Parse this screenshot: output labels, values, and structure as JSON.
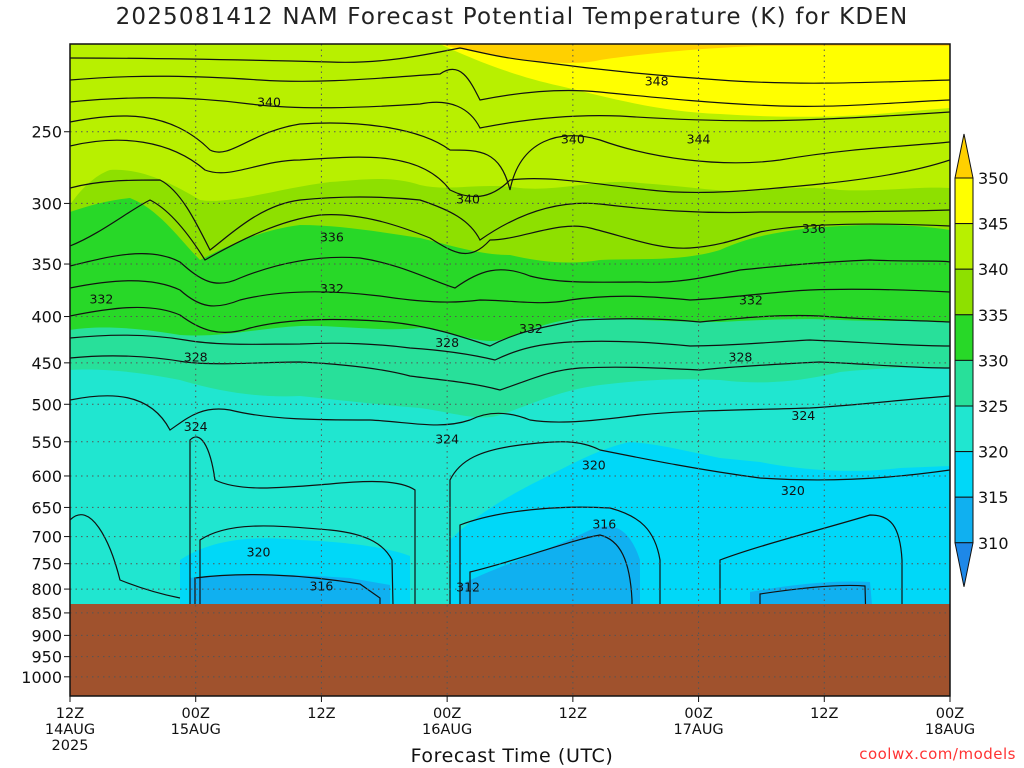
{
  "title": "2025081412 NAM Forecast Potential Temperature (K) for KDEN",
  "credit": "coolwx.com/models",
  "colors": {
    "ground": "#a0522d",
    "band_above_350": "#ffd000",
    "band_345_350": "#ffff00",
    "band_340_345": "#b8f000",
    "band_335_340": "#8ee000",
    "band_330_335": "#28d828",
    "band_325_330": "#28e09a",
    "band_320_325": "#20e6d0",
    "band_315_320": "#00d8f8",
    "band_310_315": "#10b0f0",
    "band_below_310": "#1e88e8"
  },
  "chart_data": {
    "type": "heatmap",
    "title": "2025081412 NAM Forecast Potential Temperature (K) for KDEN",
    "xlabel": "Forecast Time (UTC)",
    "ylabel": "",
    "x_ticks": [
      {
        "hour": 0,
        "line1": "12Z",
        "line2": "14AUG",
        "line3": "2025"
      },
      {
        "hour": 12,
        "line1": "00Z",
        "line2": "15AUG",
        "line3": ""
      },
      {
        "hour": 24,
        "line1": "12Z",
        "line2": "",
        "line3": ""
      },
      {
        "hour": 36,
        "line1": "00Z",
        "line2": "16AUG",
        "line3": ""
      },
      {
        "hour": 48,
        "line1": "12Z",
        "line2": "",
        "line3": ""
      },
      {
        "hour": 60,
        "line1": "00Z",
        "line2": "17AUG",
        "line3": ""
      },
      {
        "hour": 72,
        "line1": "12Z",
        "line2": "",
        "line3": ""
      },
      {
        "hour": 84,
        "line1": "00Z",
        "line2": "18AUG",
        "line3": ""
      }
    ],
    "xlim_hours": [
      0,
      84
    ],
    "y_axis": "pressure (hPa)",
    "y_ticks": [
      250,
      300,
      350,
      400,
      450,
      500,
      550,
      600,
      650,
      700,
      750,
      800,
      850,
      900,
      950,
      1000
    ],
    "ylim": [
      1050,
      200
    ],
    "surface_pressure_hpa": 835,
    "colorbar_levels": [
      310,
      315,
      320,
      325,
      330,
      335,
      340,
      345,
      350
    ],
    "contour_interval": 4,
    "contour_labels": [
      {
        "value": 348,
        "hour": 56,
        "p": 220
      },
      {
        "value": 344,
        "hour": 60,
        "p": 255
      },
      {
        "value": 340,
        "hour": 19,
        "p": 232
      },
      {
        "value": 340,
        "hour": 48,
        "p": 255
      },
      {
        "value": 340,
        "hour": 38,
        "p": 297
      },
      {
        "value": 336,
        "hour": 25,
        "p": 327
      },
      {
        "value": 336,
        "hour": 71,
        "p": 320
      },
      {
        "value": 332,
        "hour": 3,
        "p": 383
      },
      {
        "value": 332,
        "hour": 25,
        "p": 373
      },
      {
        "value": 332,
        "hour": 44,
        "p": 413
      },
      {
        "value": 332,
        "hour": 65,
        "p": 384
      },
      {
        "value": 328,
        "hour": 12,
        "p": 444
      },
      {
        "value": 328,
        "hour": 36,
        "p": 428
      },
      {
        "value": 328,
        "hour": 64,
        "p": 444
      },
      {
        "value": 324,
        "hour": 12,
        "p": 530
      },
      {
        "value": 324,
        "hour": 36,
        "p": 547
      },
      {
        "value": 324,
        "hour": 70,
        "p": 515
      },
      {
        "value": 320,
        "hour": 50,
        "p": 584
      },
      {
        "value": 320,
        "hour": 69,
        "p": 623
      },
      {
        "value": 320,
        "hour": 18,
        "p": 729
      },
      {
        "value": 316,
        "hour": 51,
        "p": 679
      },
      {
        "value": 316,
        "hour": 24,
        "p": 795
      },
      {
        "value": 312,
        "hour": 38,
        "p": 797
      }
    ]
  }
}
